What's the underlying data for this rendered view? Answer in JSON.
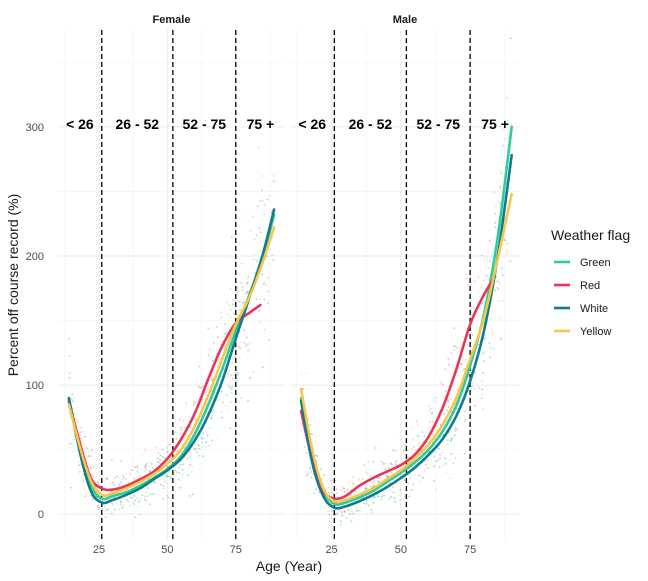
{
  "chart_data": {
    "type": "line",
    "xlabel": "Age (Year)",
    "ylabel": "Percent off course record (%)",
    "x_ticks": [
      25,
      50,
      75
    ],
    "y_ticks": [
      0,
      100,
      200,
      300
    ],
    "xlim": [
      10,
      93
    ],
    "ylim": [
      -20,
      375
    ],
    "grid": true,
    "legend": {
      "title": "Weather flag",
      "placement": "right",
      "entries": [
        "Green",
        "Red",
        "White",
        "Yellow"
      ]
    },
    "colors": {
      "Green": "#2ecc9a",
      "Red": "#e8365a",
      "White": "#137b8e",
      "Yellow": "#f7c64f"
    },
    "cutoffs": [
      26,
      52,
      75
    ],
    "region_labels": [
      "< 26",
      "26 - 52",
      "52 - 75",
      "75 +"
    ],
    "panels": [
      {
        "name": "Female",
        "series": [
          {
            "name": "Green",
            "x": [
              14,
              18,
              22,
              26,
              30,
              35,
              40,
              45,
              50,
              55,
              60,
              65,
              70,
              75,
              80,
              85,
              89
            ],
            "values": [
              88,
              50,
              22,
              12,
              14,
              17,
              22,
              28,
              35,
              45,
              62,
              85,
              112,
              142,
              170,
              200,
              232
            ]
          },
          {
            "name": "Red",
            "x": [
              14,
              18,
              22,
              26,
              30,
              35,
              40,
              45,
              50,
              55,
              60,
              65,
              70,
              75,
              80,
              84
            ],
            "values": [
              87,
              55,
              28,
              20,
              19,
              22,
              27,
              33,
              43,
              58,
              78,
              105,
              130,
              148,
              156,
              162
            ]
          },
          {
            "name": "White",
            "x": [
              14,
              18,
              22,
              26,
              30,
              35,
              40,
              45,
              50,
              55,
              60,
              65,
              70,
              75,
              80,
              85,
              89
            ],
            "values": [
              90,
              48,
              18,
              9,
              11,
              15,
              20,
              27,
              34,
              43,
              57,
              77,
              103,
              136,
              168,
              202,
              236
            ]
          },
          {
            "name": "Yellow",
            "x": [
              14,
              18,
              22,
              26,
              30,
              35,
              40,
              45,
              50,
              55,
              60,
              65,
              70,
              75,
              80,
              85,
              89
            ],
            "values": [
              85,
              52,
              26,
              15,
              16,
              20,
              25,
              31,
              39,
              50,
              68,
              92,
              120,
              147,
              168,
              196,
              222
            ]
          }
        ]
      },
      {
        "name": "Male",
        "series": [
          {
            "name": "Green",
            "x": [
              14,
              18,
              22,
              26,
              30,
              35,
              40,
              45,
              50,
              55,
              60,
              65,
              70,
              75,
              80,
              85,
              90
            ],
            "values": [
              90,
              45,
              18,
              8,
              9,
              13,
              18,
              25,
              32,
              40,
              50,
              64,
              84,
              115,
              155,
              215,
              300
            ]
          },
          {
            "name": "Red",
            "x": [
              14,
              18,
              22,
              26,
              30,
              35,
              40,
              45,
              50,
              55,
              60,
              65,
              70,
              75,
              80,
              84
            ],
            "values": [
              80,
              42,
              18,
              12,
              14,
              22,
              28,
              33,
              38,
              46,
              60,
              82,
              112,
              147,
              170,
              184
            ]
          },
          {
            "name": "White",
            "x": [
              14,
              18,
              22,
              26,
              30,
              35,
              40,
              45,
              50,
              55,
              60,
              65,
              70,
              75,
              80,
              85,
              90
            ],
            "values": [
              88,
              40,
              14,
              5,
              6,
              10,
              15,
              21,
              28,
              36,
              46,
              58,
              76,
              103,
              142,
              200,
              278
            ]
          },
          {
            "name": "Yellow",
            "x": [
              14,
              18,
              22,
              26,
              30,
              35,
              40,
              45,
              50,
              55,
              60,
              65,
              70,
              75,
              80,
              85,
              90
            ],
            "values": [
              97,
              50,
              20,
              10,
              11,
              15,
              20,
              27,
              34,
              43,
              54,
              69,
              90,
              120,
              152,
              198,
              248
            ]
          }
        ]
      }
    ]
  }
}
